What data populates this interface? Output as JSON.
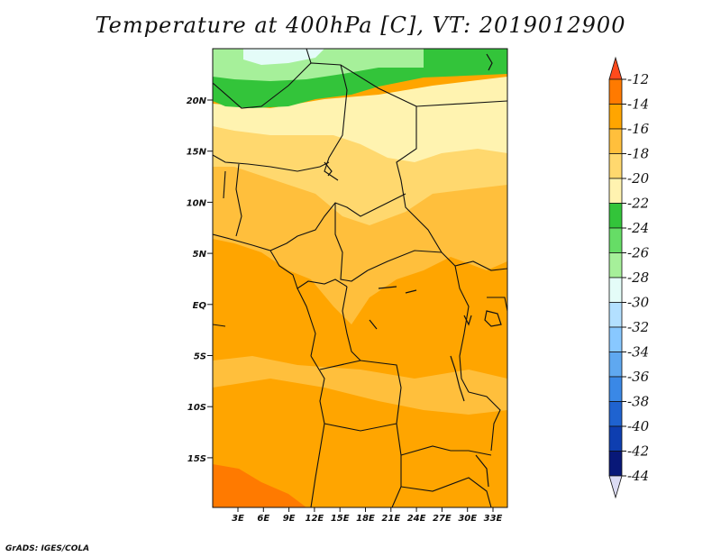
{
  "title": "Temperature at 400hPa [C], VT: 2019012900",
  "credit": "GrADS: IGES/COLA",
  "lat_labels": [
    "20N",
    "15N",
    "10N",
    "5N",
    "EQ",
    "5S",
    "10S",
    "15S"
  ],
  "lon_labels": [
    "3E",
    "6E",
    "9E",
    "12E",
    "15E",
    "18E",
    "21E",
    "24E",
    "27E",
    "30E",
    "33E"
  ],
  "colorbar": {
    "levels": [
      "-12",
      "-14",
      "-16",
      "-18",
      "-20",
      "-22",
      "-24",
      "-26",
      "-28",
      "-30",
      "-32",
      "-34",
      "-36",
      "-38",
      "-40",
      "-42",
      "-44"
    ],
    "colors": [
      "#ff4a1c",
      "#ff7a00",
      "#ffa500",
      "#ffbf3c",
      "#ffd86e",
      "#fff3b0",
      "#33c43a",
      "#66dd66",
      "#a6f09a",
      "#e4fcf8",
      "#b3e0ff",
      "#88c8ff",
      "#5fa8f0",
      "#3a88e6",
      "#1f63d0",
      "#0e3eb0",
      "#081878",
      "#dcdcf4"
    ]
  },
  "fields": {
    "background": "#ffa500",
    "regions": [
      {
        "name": "north-cold-green",
        "color": "#33c43a"
      },
      {
        "name": "north-light-green",
        "color": "#a6f09a"
      },
      {
        "name": "north-pale",
        "color": "#e4fcf8"
      },
      {
        "name": "sahel-yellow",
        "color": "#fff3b0"
      },
      {
        "name": "band-light-orange",
        "color": "#ffd86e"
      },
      {
        "name": "band-orange",
        "color": "#ffbf3c"
      },
      {
        "name": "south-warm",
        "color": "#ff7a00"
      }
    ]
  }
}
